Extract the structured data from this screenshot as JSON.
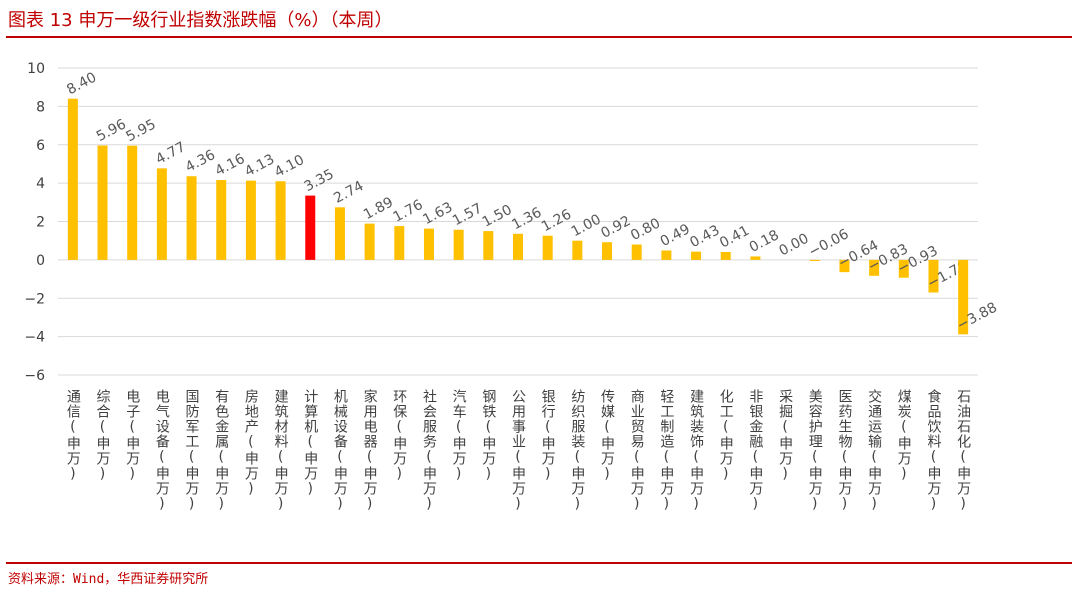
{
  "header": {
    "title": "图表 13 申万一级行业指数涨跌幅（%）（本周）"
  },
  "footer": {
    "source": "资料来源：Wind，华西证券研究所"
  },
  "colors": {
    "bar": "#FFC000",
    "highlight": "#FF0000",
    "rule": "#C00000",
    "grid": "#D9D9D9",
    "text": "#404040"
  },
  "chart_data": {
    "type": "bar",
    "title": "图表 13 申万一级行业指数涨跌幅（%）（本周）",
    "xlabel": "",
    "ylabel": "",
    "ylim": [
      -6,
      10
    ],
    "yticks": [
      "10",
      "8",
      "6",
      "4",
      "2",
      "0",
      "−2",
      "−4",
      "−6"
    ],
    "grid": true,
    "legend": "none",
    "highlight_index": 8,
    "categories": [
      "通信(申万)",
      "综合(申万)",
      "电子(申万)",
      "电气设备(申万)",
      "国防军工(申万)",
      "有色金属(申万)",
      "房地产(申万)",
      "建筑材料(申万)",
      "计算机(申万)",
      "机械设备(申万)",
      "家用电器(申万)",
      "环保(申万)",
      "社会服务(申万)",
      "汽车(申万)",
      "钢铁(申万)",
      "公用事业(申万)",
      "银行(申万)",
      "纺织服装(申万)",
      "传媒(申万)",
      "商业贸易(申万)",
      "轻工制造(申万)",
      "建筑装饰(申万)",
      "化工(申万)",
      "非银金融(申万)",
      "采掘(申万)",
      "美容护理(申万)",
      "医药生物(申万)",
      "交通运输(申万)",
      "煤炭(申万)",
      "食品饮料(申万)",
      "石油石化(申万)"
    ],
    "values": [
      8.4,
      5.96,
      5.95,
      4.77,
      4.36,
      4.16,
      4.13,
      4.1,
      3.35,
      2.74,
      1.89,
      1.76,
      1.63,
      1.57,
      1.5,
      1.36,
      1.26,
      1.0,
      0.92,
      0.8,
      0.49,
      0.43,
      0.41,
      0.18,
      0.0,
      -0.06,
      -0.64,
      -0.83,
      -0.93,
      -1.7,
      -3.88
    ],
    "value_labels": [
      "8.40",
      "5.96",
      "5.95",
      "4.77",
      "4.36",
      "4.16",
      "4.13",
      "4.10",
      "3.35",
      "2.74",
      "1.89",
      "1.76",
      "1.63",
      "1.57",
      "1.50",
      "1.36",
      "1.26",
      "1.00",
      "0.92",
      "0.80",
      "0.49",
      "0.43",
      "0.41",
      "0.18",
      "0.00",
      "−0.06",
      "−0.64",
      "−0.83",
      "−0.93",
      "−1.70",
      "−3.88"
    ]
  }
}
